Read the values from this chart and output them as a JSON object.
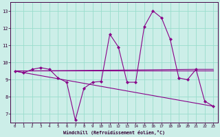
{
  "xlabel": "Windchill (Refroidissement éolien,°C)",
  "bg_color": "#cceee8",
  "grid_color": "#99ddcc",
  "line_color": "#880088",
  "xlim": [
    -0.5,
    23.5
  ],
  "ylim": [
    6.5,
    13.5
  ],
  "xticks": [
    0,
    1,
    2,
    3,
    4,
    5,
    6,
    7,
    8,
    9,
    10,
    11,
    12,
    13,
    14,
    15,
    16,
    17,
    18,
    19,
    20,
    21,
    22,
    23
  ],
  "yticks": [
    7,
    8,
    9,
    10,
    11,
    12,
    13
  ],
  "line1_x": [
    0,
    1,
    2,
    3,
    4,
    5,
    6,
    7,
    8,
    9,
    10,
    11,
    12,
    13,
    14,
    15,
    16,
    17,
    18,
    19,
    20,
    21,
    22,
    23
  ],
  "line1_y": [
    9.5,
    9.4,
    9.6,
    9.7,
    9.6,
    9.1,
    8.85,
    6.65,
    8.5,
    8.85,
    8.9,
    11.65,
    10.9,
    8.85,
    8.85,
    12.1,
    13.0,
    12.6,
    11.35,
    9.1,
    9.0,
    9.6,
    7.75,
    7.45
  ],
  "line2_x": [
    0,
    23
  ],
  "line2_y": [
    9.55,
    9.55
  ],
  "line3_x": [
    0,
    23
  ],
  "line3_y": [
    9.5,
    7.45
  ],
  "line4_x": [
    0,
    21,
    23
  ],
  "line4_y": [
    9.5,
    9.6,
    9.6
  ]
}
